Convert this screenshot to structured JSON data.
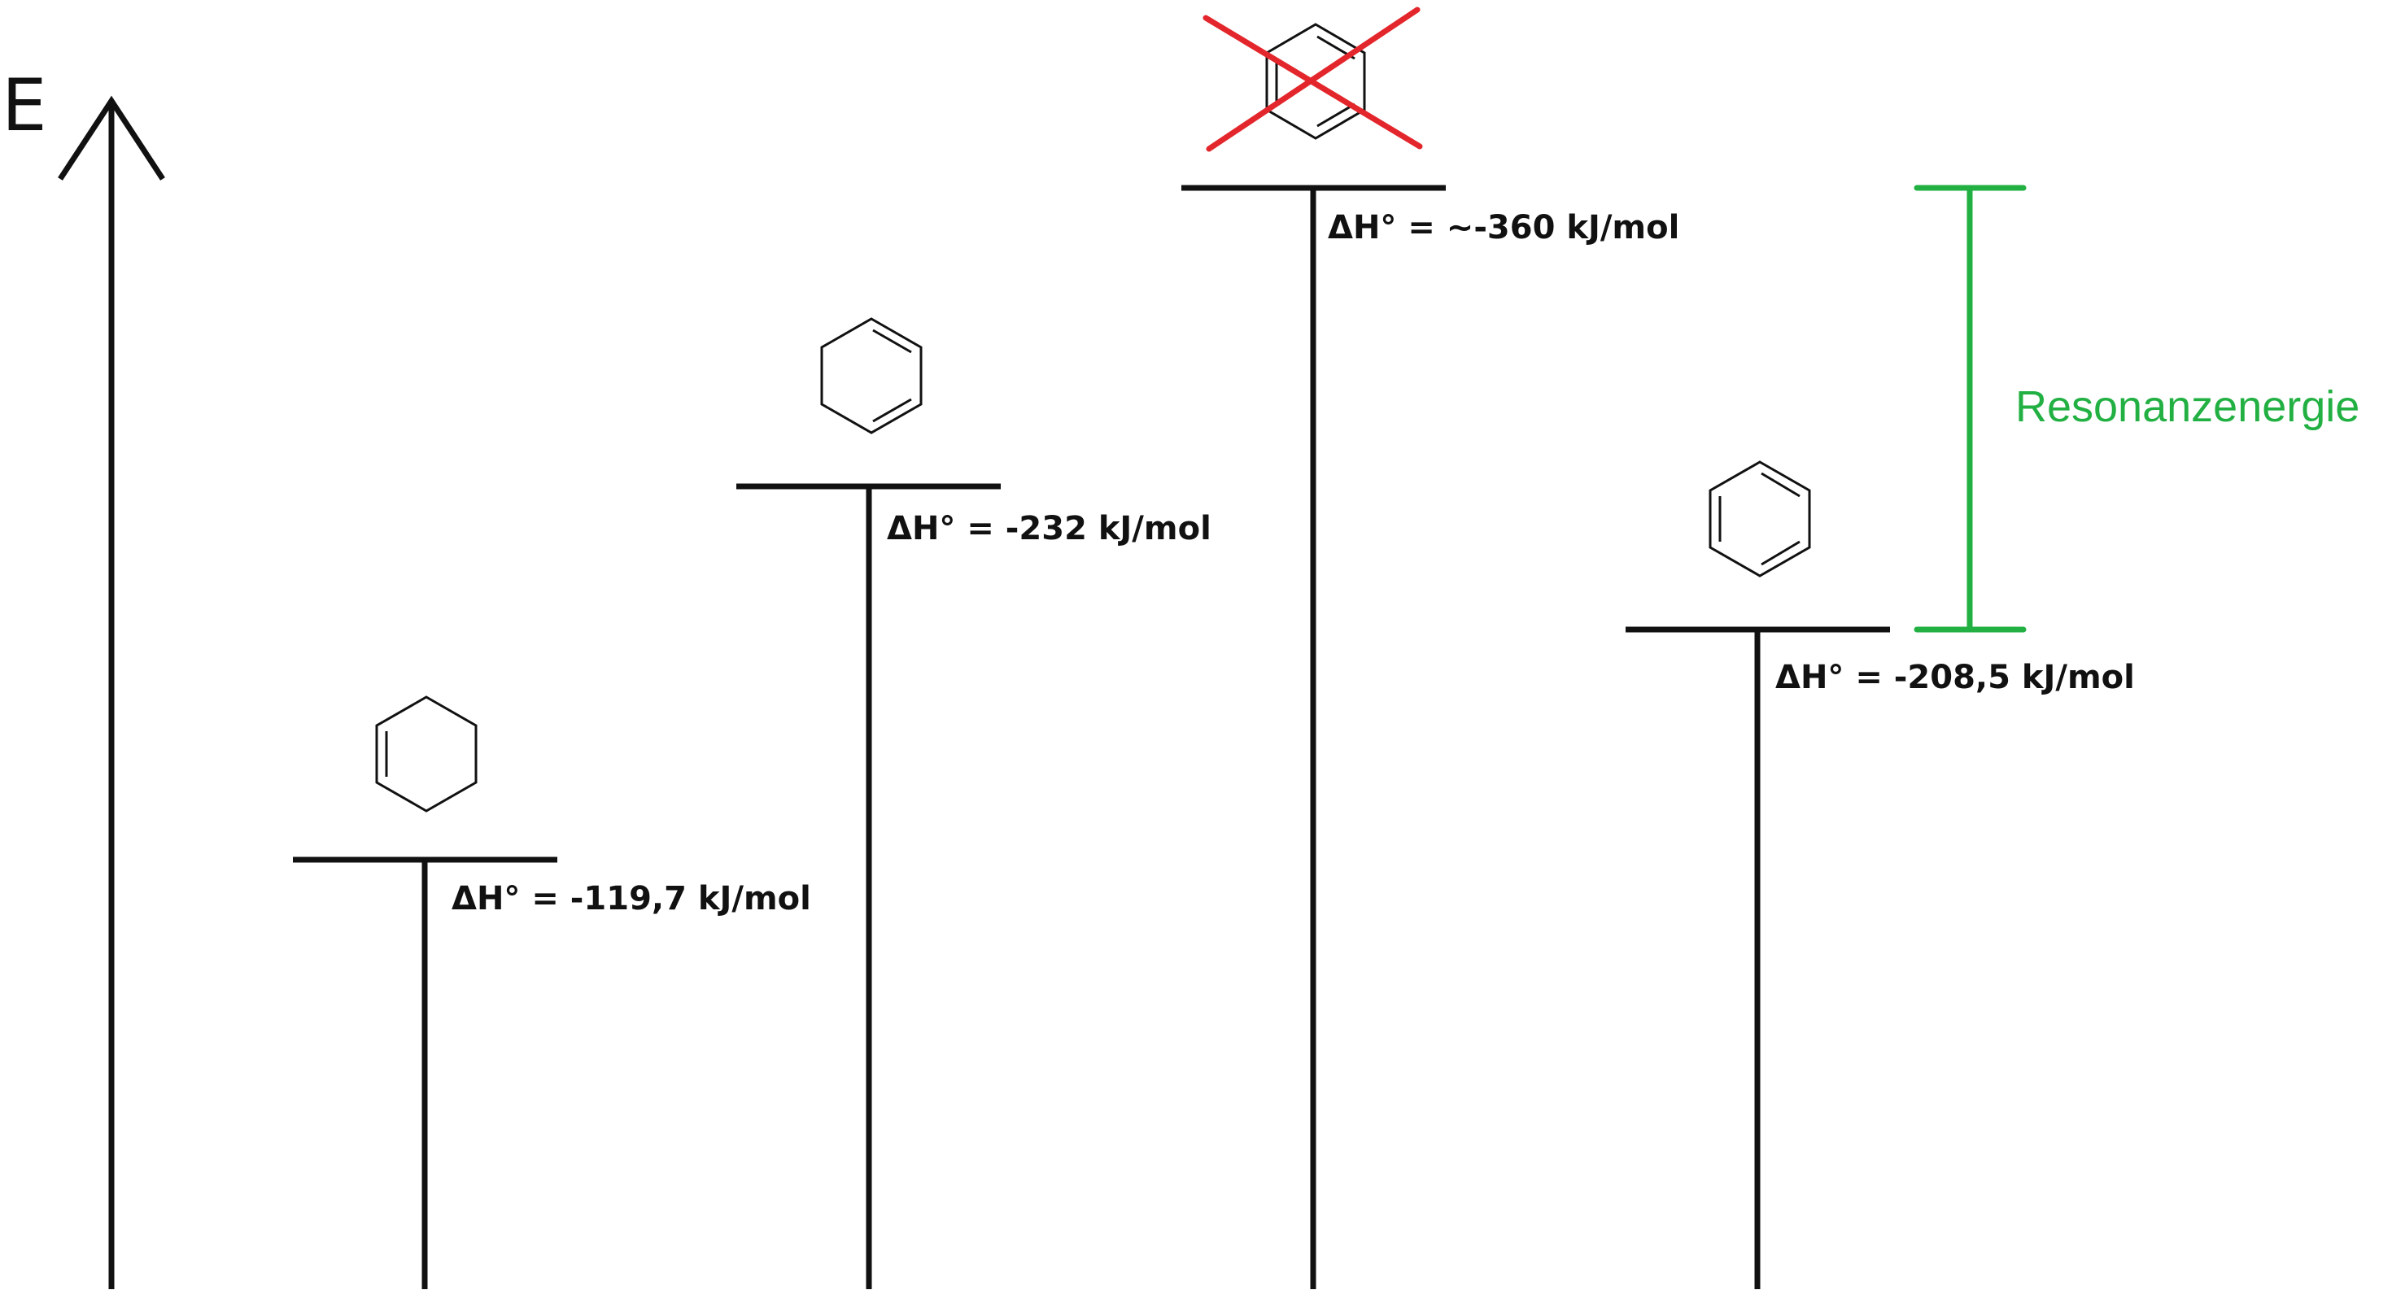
{
  "axis": {
    "label": "E"
  },
  "colors": {
    "line": "#111111",
    "cross": "#e3262c",
    "resonance": "#22b043"
  },
  "levels": [
    {
      "id": "cyclohexene",
      "molecule_icon": "cyclohexene-icon",
      "enthalpy_label": "ΔH° = -119,7 kJ/mol"
    },
    {
      "id": "cyclohexadiene",
      "molecule_icon": "cyclohexadiene-icon",
      "enthalpy_label": "ΔH° = -232 kJ/mol"
    },
    {
      "id": "hypothetical-cyclohexatriene",
      "molecule_icon": "benzene-crossed-out-icon",
      "enthalpy_label": "ΔH° = ~-360 kJ/mol"
    },
    {
      "id": "benzene",
      "molecule_icon": "benzene-icon",
      "enthalpy_label": "ΔH° = -208,5 kJ/mol"
    }
  ],
  "resonance": {
    "label": "Resonanzenergie"
  }
}
